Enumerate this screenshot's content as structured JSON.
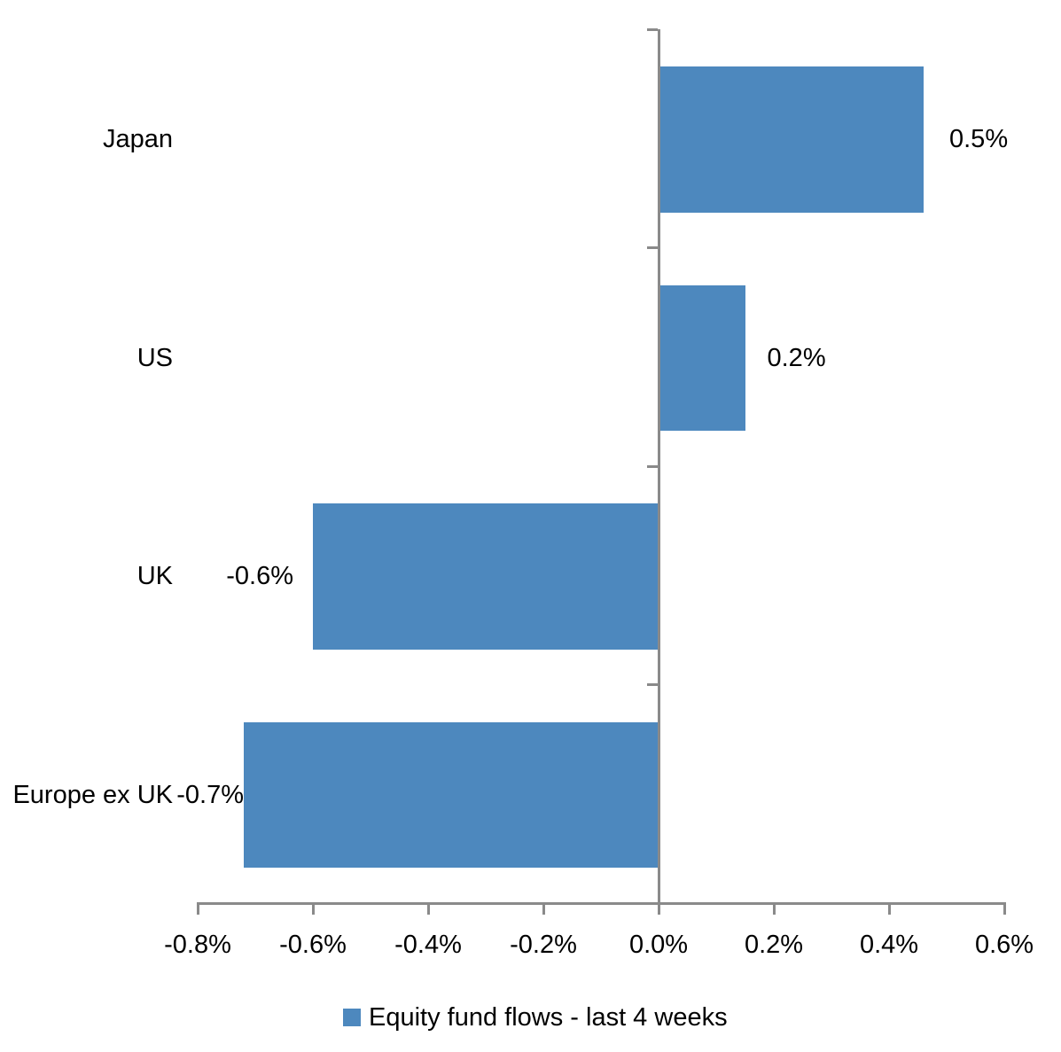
{
  "chart_data": {
    "type": "bar",
    "orientation": "horizontal",
    "title": "",
    "xlabel": "",
    "ylabel": "",
    "grid": false,
    "categories": [
      "Japan",
      "US",
      "UK",
      "Europe ex UK"
    ],
    "series": [
      {
        "name": "Equity fund flows - last 4 weeks",
        "values": [
          0.46,
          0.15,
          -0.6,
          -0.72
        ],
        "data_labels": [
          "0.5%",
          "0.2%",
          "-0.6%",
          "-0.7%"
        ]
      }
    ],
    "x_axis": {
      "min": -0.8,
      "max": 0.6,
      "step": 0.2,
      "tick_labels": [
        "-0.8%",
        "-0.6%",
        "-0.4%",
        "-0.2%",
        "0.0%",
        "0.2%",
        "0.4%",
        "0.6%"
      ]
    },
    "legend": {
      "position": "bottom",
      "entries": [
        {
          "label": "Equity fund flows - last 4 weeks",
          "color": "#4D88BE"
        }
      ]
    },
    "colors": {
      "bar": "#4D88BE",
      "axis": "#8A8A8A",
      "text": "#000000",
      "background": "#FFFFFF"
    }
  }
}
